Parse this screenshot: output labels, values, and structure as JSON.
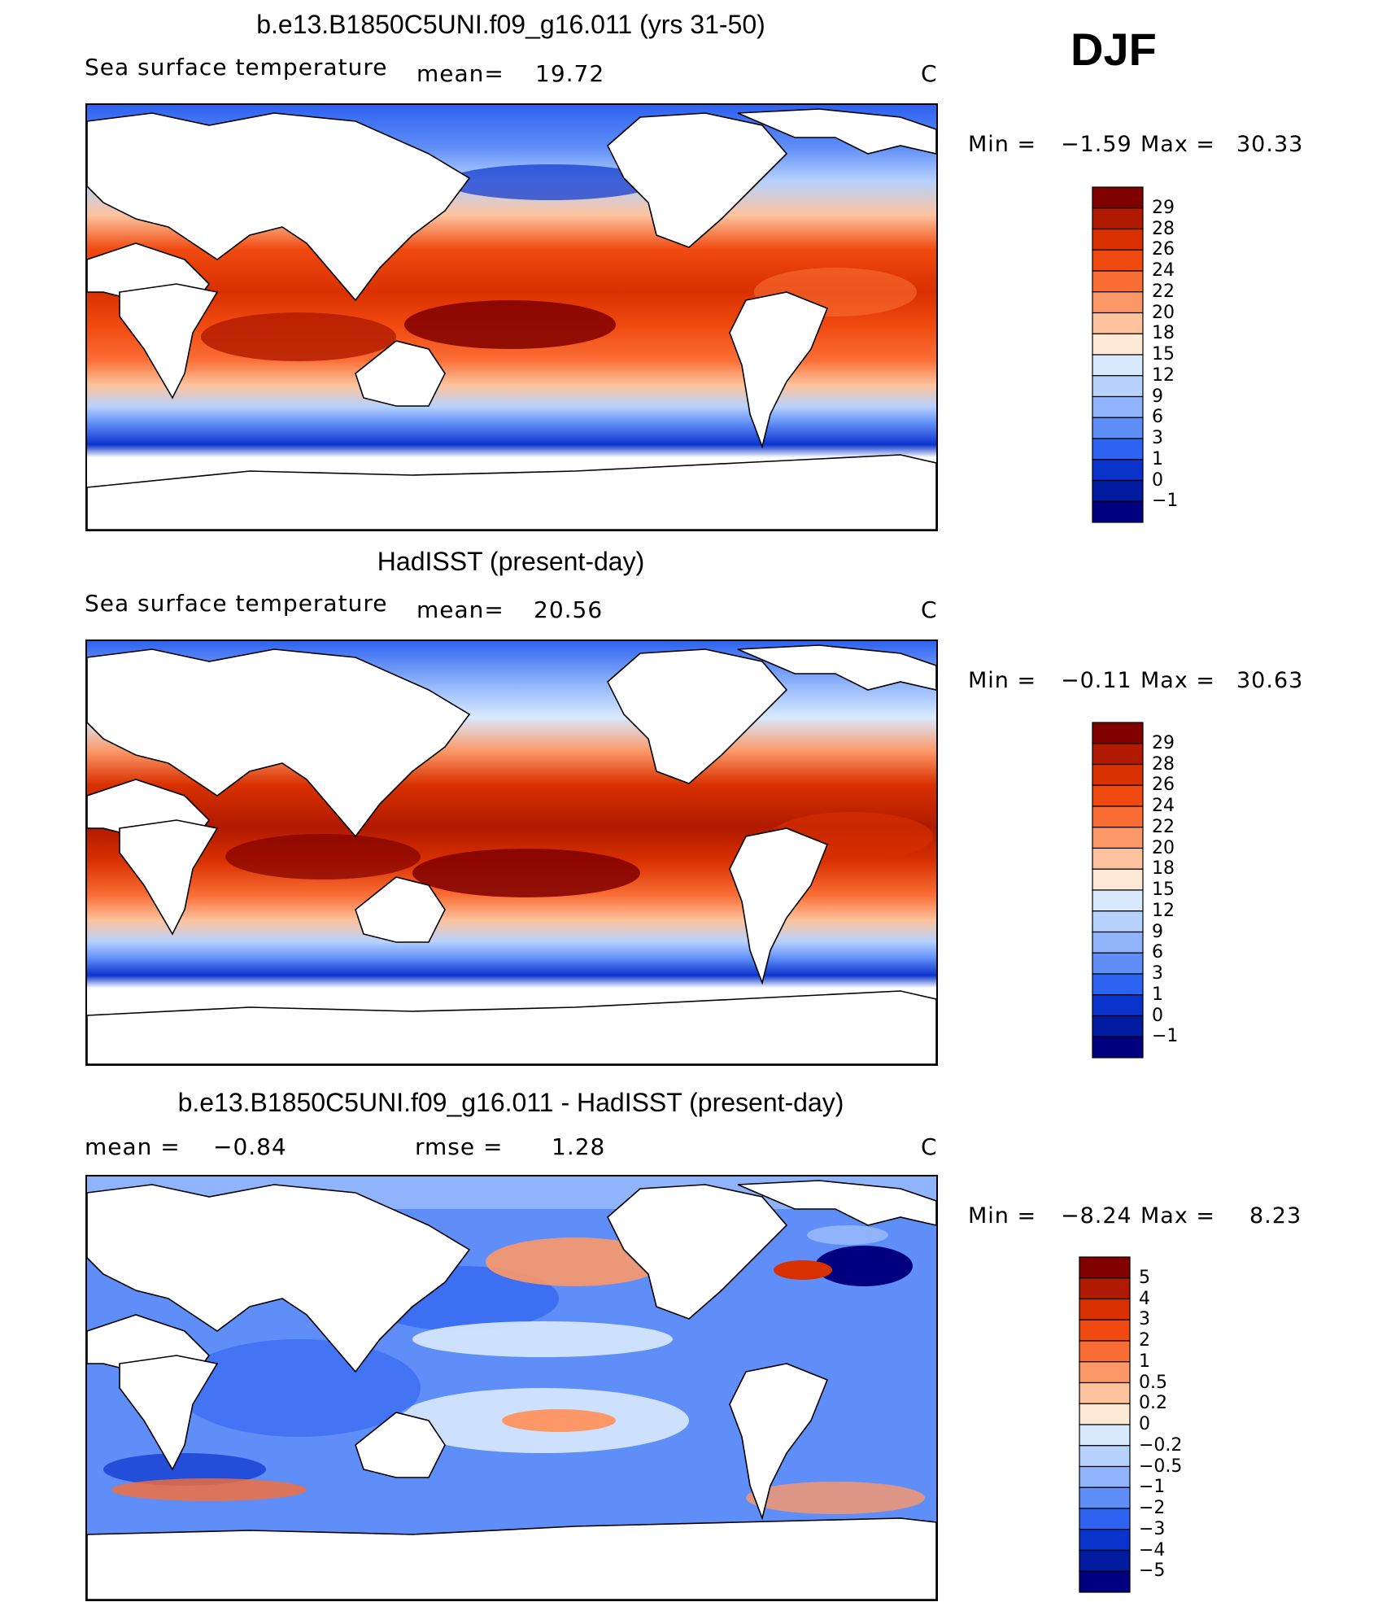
{
  "season": "DJF",
  "panels": [
    {
      "title": "b.e13.B1850C5UNI.f09_g16.011 (yrs 31-50)",
      "left_label": "Sea surface temperature",
      "stat_label": "mean=",
      "stat_value": "19.72",
      "unit": "C",
      "min_label": "Min =",
      "min_value": "−1.59",
      "max_label": "Max =",
      "max_value": "30.33",
      "levels": [
        "29",
        "28",
        "26",
        "24",
        "22",
        "20",
        "18",
        "15",
        "12",
        "9",
        "6",
        "3",
        "1",
        "0",
        "−1"
      ],
      "colors": [
        "#800000",
        "#b01a00",
        "#d93000",
        "#f04a10",
        "#fa6e35",
        "#fc9868",
        "#fdc39e",
        "#ffe8d6",
        "#d9eaff",
        "#b7d2fd",
        "#8fb4fb",
        "#5f8ef8",
        "#2e62f0",
        "#0a33cc",
        "#001aa0",
        "#000080"
      ]
    },
    {
      "title": "HadISST (present-day)",
      "left_label": "Sea surface temperature",
      "stat_label": "mean=",
      "stat_value": "20.56",
      "unit": "C",
      "min_label": "Min =",
      "min_value": "−0.11",
      "max_label": "Max =",
      "max_value": "30.63",
      "levels": [
        "29",
        "28",
        "26",
        "24",
        "22",
        "20",
        "18",
        "15",
        "12",
        "9",
        "6",
        "3",
        "1",
        "0",
        "−1"
      ],
      "colors": [
        "#800000",
        "#b01a00",
        "#d93000",
        "#f04a10",
        "#fa6e35",
        "#fc9868",
        "#fdc39e",
        "#ffe8d6",
        "#d9eaff",
        "#b7d2fd",
        "#8fb4fb",
        "#5f8ef8",
        "#2e62f0",
        "#0a33cc",
        "#001aa0",
        "#000080"
      ]
    },
    {
      "title": "b.e13.B1850C5UNI.f09_g16.011 - HadISST (present-day)",
      "left_label": "mean =",
      "left_value": "−0.84",
      "stat_label": "rmse =",
      "stat_value": "1.28",
      "unit": "C",
      "min_label": "Min =",
      "min_value": "−8.24",
      "max_label": "Max =",
      "max_value": "8.23",
      "levels": [
        "5",
        "4",
        "3",
        "2",
        "1",
        "0.5",
        "0.2",
        "0",
        "−0.2",
        "−0.5",
        "−1",
        "−2",
        "−3",
        "−4",
        "−5"
      ],
      "colors": [
        "#800000",
        "#b01a00",
        "#d93000",
        "#f04a10",
        "#fa6e35",
        "#fc9868",
        "#fdc39e",
        "#ffe8d6",
        "#d9eaff",
        "#b7d2fd",
        "#8fb4fb",
        "#5f8ef8",
        "#2e62f0",
        "#0a33cc",
        "#001aa0",
        "#000080"
      ]
    }
  ]
}
